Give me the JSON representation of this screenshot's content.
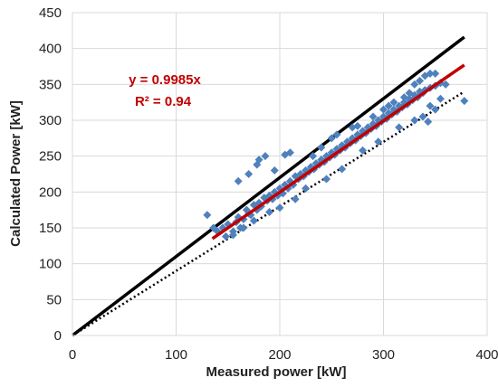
{
  "chart_data": {
    "type": "scatter",
    "title": "",
    "xlabel": "Measured power [kW]",
    "ylabel": "Calculated Power [kW]",
    "xlim": [
      0,
      400
    ],
    "ylim": [
      0,
      450
    ],
    "xticks": [
      0,
      100,
      200,
      300,
      400
    ],
    "yticks": [
      0,
      50,
      100,
      150,
      200,
      250,
      300,
      350,
      400,
      450
    ],
    "grid": true,
    "legend": "none",
    "annotations": [
      "y = 0.9985x",
      "R² = 0.94"
    ],
    "annotation_color": "#c00000",
    "series": [
      {
        "kind": "points",
        "marker": "diamond",
        "color": "#4f81bd",
        "x": [
          130,
          136,
          140,
          145,
          150,
          155,
          158,
          160,
          162,
          165,
          168,
          170,
          172,
          175,
          178,
          180,
          182,
          185,
          188,
          190,
          193,
          195,
          198,
          200,
          203,
          205,
          208,
          210,
          213,
          215,
          218,
          220,
          223,
          225,
          228,
          230,
          233,
          235,
          238,
          240,
          243,
          245,
          248,
          250,
          253,
          255,
          258,
          260,
          263,
          265,
          268,
          270,
          273,
          275,
          278,
          280,
          283,
          285,
          288,
          290,
          293,
          295,
          298,
          300,
          303,
          305,
          308,
          310,
          313,
          315,
          318,
          320,
          323,
          325,
          328,
          330,
          333,
          335,
          338,
          340,
          345,
          350,
          355,
          360,
          378,
          160,
          170,
          180,
          186,
          178,
          195,
          205,
          210,
          232,
          240,
          250,
          255,
          270,
          275,
          290,
          300,
          305,
          310,
          320,
          325,
          330,
          335,
          340,
          345,
          350,
          148,
          155,
          165,
          175,
          190,
          200,
          215,
          225,
          245,
          260,
          280,
          295,
          315,
          330,
          343,
          350,
          355,
          345,
          338
        ],
        "y": [
          168,
          150,
          145,
          150,
          155,
          140,
          158,
          165,
          150,
          162,
          175,
          170,
          168,
          182,
          175,
          185,
          180,
          192,
          188,
          195,
          190,
          200,
          195,
          205,
          198,
          210,
          205,
          215,
          210,
          222,
          218,
          225,
          222,
          230,
          228,
          235,
          232,
          240,
          238,
          245,
          242,
          250,
          248,
          255,
          252,
          260,
          258,
          265,
          262,
          270,
          268,
          275,
          272,
          280,
          278,
          285,
          282,
          290,
          288,
          295,
          292,
          300,
          298,
          305,
          302,
          310,
          308,
          315,
          312,
          320,
          318,
          325,
          322,
          330,
          328,
          335,
          332,
          340,
          338,
          342,
          345,
          348,
          352,
          350,
          327,
          215,
          225,
          245,
          250,
          238,
          230,
          252,
          255,
          250,
          262,
          275,
          280,
          290,
          292,
          305,
          315,
          320,
          325,
          332,
          338,
          350,
          355,
          362,
          365,
          365,
          138,
          145,
          150,
          160,
          172,
          178,
          190,
          205,
          218,
          232,
          258,
          270,
          290,
          300,
          298,
          315,
          330,
          320,
          305
        ]
      },
      {
        "kind": "line",
        "name": "y = 0.9985x",
        "color": "#c00000",
        "x": [
          135,
          378
        ],
        "y": [
          135,
          377
        ]
      },
      {
        "kind": "line",
        "color": "#000000",
        "x": [
          0,
          378
        ],
        "y": [
          0,
          416
        ]
      },
      {
        "kind": "line",
        "style": "dotted",
        "color": "#000000",
        "x": [
          0,
          378
        ],
        "y": [
          0,
          340
        ]
      }
    ]
  }
}
